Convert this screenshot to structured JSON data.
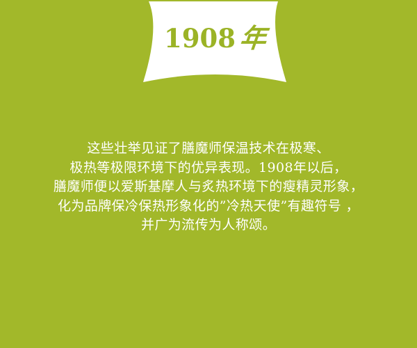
{
  "colors": {
    "background": "#a2b82a",
    "banner": "#ffffff",
    "year_text": "#9bb326",
    "body_text": "#ffffff"
  },
  "banner": {
    "year_number": "1908",
    "year_char": "年"
  },
  "paragraph": {
    "lines": [
      "这些壮举见证了膳魔师保温技术在极寒、",
      "极热等极限环境下的优异表现。1908年以后，",
      "膳魔师便以爱斯基摩人与炙热环境下的瘦精灵形象，",
      "化为品牌保冷保热形象化的”冷热天使”有趣符号 ，",
      "并广为流传为人称颂。"
    ]
  }
}
